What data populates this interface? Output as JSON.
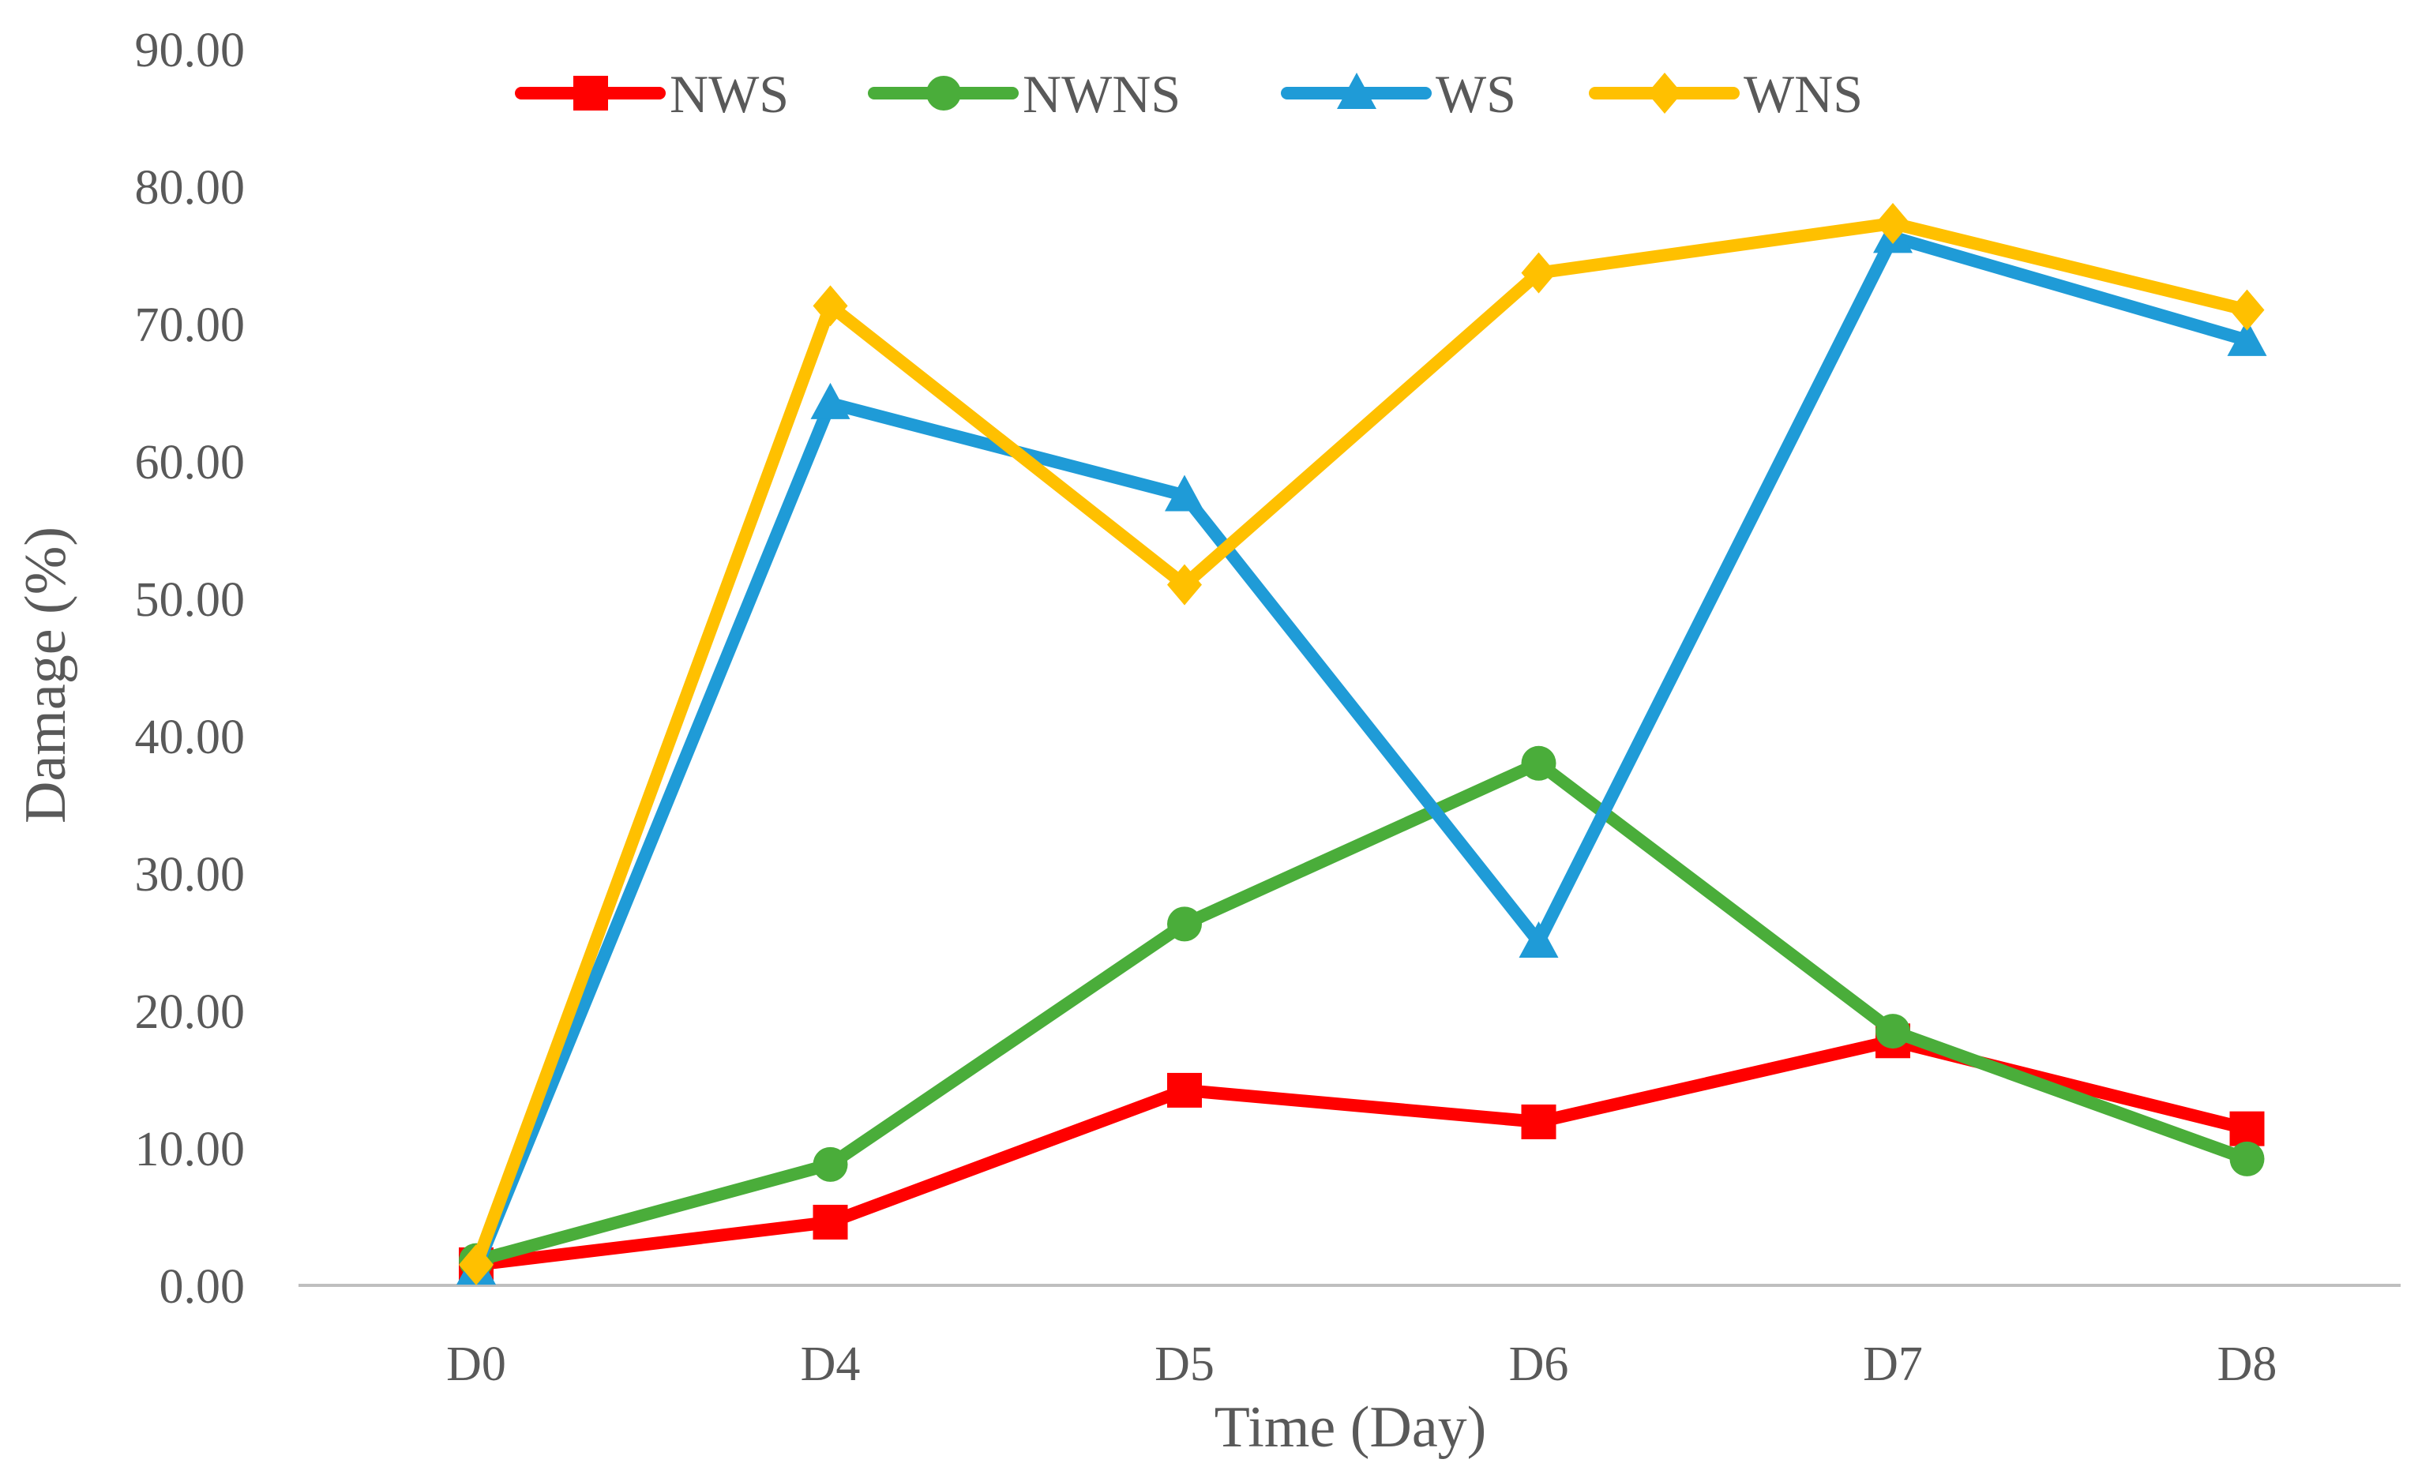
{
  "chart_data": {
    "type": "line",
    "title": "",
    "xlabel": "Time (Day)",
    "ylabel": "Damage (%)",
    "ylim": [
      0,
      90
    ],
    "yticks": [
      "0.00",
      "10.00",
      "20.00",
      "30.00",
      "40.00",
      "50.00",
      "60.00",
      "70.00",
      "80.00",
      "90.00"
    ],
    "categories": [
      "D0",
      "D4",
      "D5",
      "D6",
      "D7",
      "D8"
    ],
    "legend_position": "top",
    "grid": false,
    "series": [
      {
        "name": "NWS",
        "color": "#ff0000",
        "marker": "square",
        "values": [
          1.5,
          4.6,
          14.2,
          11.9,
          17.8,
          11.4
        ]
      },
      {
        "name": "NWNS",
        "color": "#4aad3a",
        "marker": "circle",
        "values": [
          1.8,
          8.8,
          26.3,
          38.0,
          18.5,
          9.2
        ]
      },
      {
        "name": "WS",
        "color": "#1f9bd7",
        "marker": "triangle",
        "values": [
          1.2,
          64.2,
          57.5,
          25.0,
          76.3,
          68.8
        ]
      },
      {
        "name": "WNS",
        "color": "#ffc000",
        "marker": "diamond",
        "values": [
          1.5,
          71.3,
          51.0,
          73.7,
          77.3,
          71.0
        ]
      }
    ]
  }
}
